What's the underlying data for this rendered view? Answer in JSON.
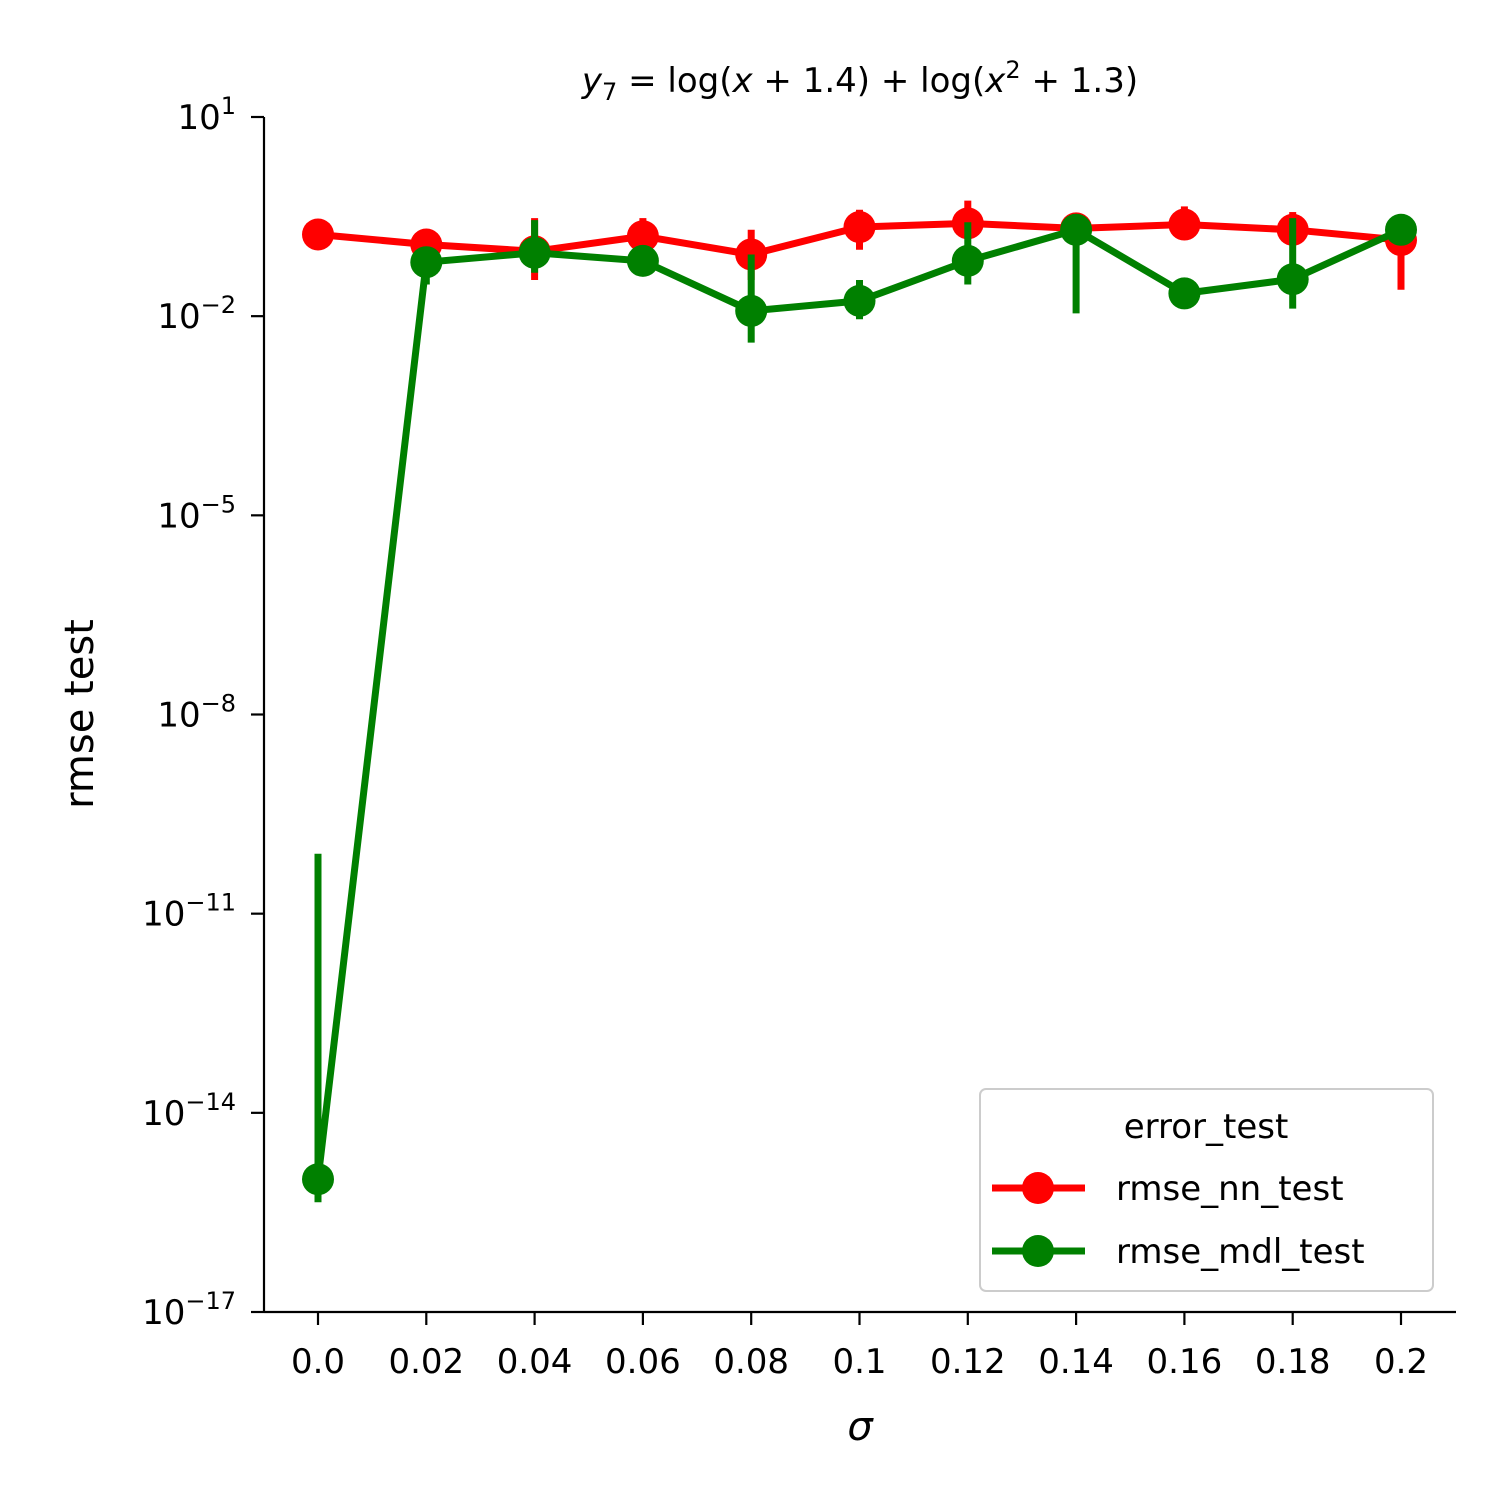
{
  "chart_data": {
    "type": "line",
    "title": "y7 = log(x + 1.4) + log(x² + 1.3)",
    "title_parts": {
      "y": "y",
      "y_sub": "7",
      "eq": " = log(",
      "x1": "x",
      "mid": " + 1.4) + log(",
      "x2": "x",
      "x2_sup": "2",
      "tail": " + 1.3)"
    },
    "xlabel": "σ",
    "ylabel": "rmse test",
    "x_categories": [
      "0.0",
      "0.02",
      "0.04",
      "0.06",
      "0.08",
      "0.1",
      "0.12",
      "0.14",
      "0.16",
      "0.18",
      "0.2"
    ],
    "y_scale": "log",
    "ylim_log10": [
      -17,
      1
    ],
    "y_ticks": [
      {
        "base": "10",
        "exp": "1",
        "log10": 1
      },
      {
        "base": "10",
        "exp": "−2",
        "log10": -2
      },
      {
        "base": "10",
        "exp": "−5",
        "log10": -5
      },
      {
        "base": "10",
        "exp": "−8",
        "log10": -8
      },
      {
        "base": "10",
        "exp": "−11",
        "log10": -11
      },
      {
        "base": "10",
        "exp": "−14",
        "log10": -14
      },
      {
        "base": "10",
        "exp": "−17",
        "log10": -17
      }
    ],
    "legend": {
      "title": "error_test",
      "placement": "lower-right"
    },
    "series": [
      {
        "name": "rmse_nn_test",
        "color": "#ff0000",
        "values": [
          0.17,
          0.12,
          0.095,
          0.16,
          0.085,
          0.22,
          0.25,
          0.21,
          0.24,
          0.2,
          0.14
        ],
        "err_low": [
          0.17,
          0.1,
          0.035,
          0.12,
          0.035,
          0.1,
          0.15,
          0.18,
          0.16,
          0.15,
          0.025
        ],
        "err_high": [
          0.17,
          0.15,
          0.3,
          0.3,
          0.2,
          0.4,
          0.55,
          0.3,
          0.45,
          0.37,
          0.25
        ]
      },
      {
        "name": "rmse_mdl_test",
        "color": "#008000",
        "values": [
          1e-15,
          0.065,
          0.09,
          0.068,
          0.012,
          0.017,
          0.068,
          0.2,
          0.022,
          0.036,
          0.2
        ],
        "err_low": [
          4.5e-16,
          0.03,
          0.045,
          0.05,
          0.004,
          0.009,
          0.03,
          0.011,
          0.015,
          0.013,
          0.15
        ],
        "err_high": [
          8e-11,
          0.1,
          0.28,
          0.085,
          0.085,
          0.035,
          0.26,
          0.3,
          0.032,
          0.3,
          0.25
        ]
      }
    ]
  }
}
